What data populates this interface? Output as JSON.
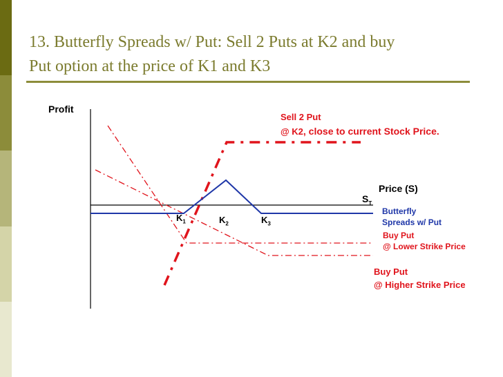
{
  "slide": {
    "title_line1": "13. Butterfly Spreads w/ Put: Sell 2 Puts at K2 and buy",
    "title_line2": "Put option at the price of K1 and K3",
    "sidebar_colors": [
      "#6b6b12",
      "#8c8c3a",
      "#b5b57a",
      "#d4d4a8",
      "#e8e8cf"
    ]
  },
  "diagram": {
    "y_axis_label": "Profit",
    "x_axis_label": "Price (S)",
    "st_main": "S",
    "st_sub": "T",
    "k1": {
      "main": "K",
      "sub": "1"
    },
    "k2": {
      "main": "K",
      "sub": "2"
    },
    "k3": {
      "main": "K",
      "sub": "3"
    },
    "sell_put": {
      "line1": "Sell 2 Put",
      "line2_prefix": "@ K2",
      "line2_suffix": ", close to current Stock Price.",
      "color": "#e0141c"
    },
    "butterfly": {
      "line1": "Butterfly",
      "line2": "Spreads w/ Put",
      "color": "#1f37a8"
    },
    "buy_put_low": {
      "line1": "Buy Put",
      "line2": "@ Lower Strike Price",
      "color": "#e0141c"
    },
    "buy_put_high": {
      "line1": "Buy Put",
      "line2": "@ Higher Strike Price",
      "color": "#e0141c"
    }
  }
}
